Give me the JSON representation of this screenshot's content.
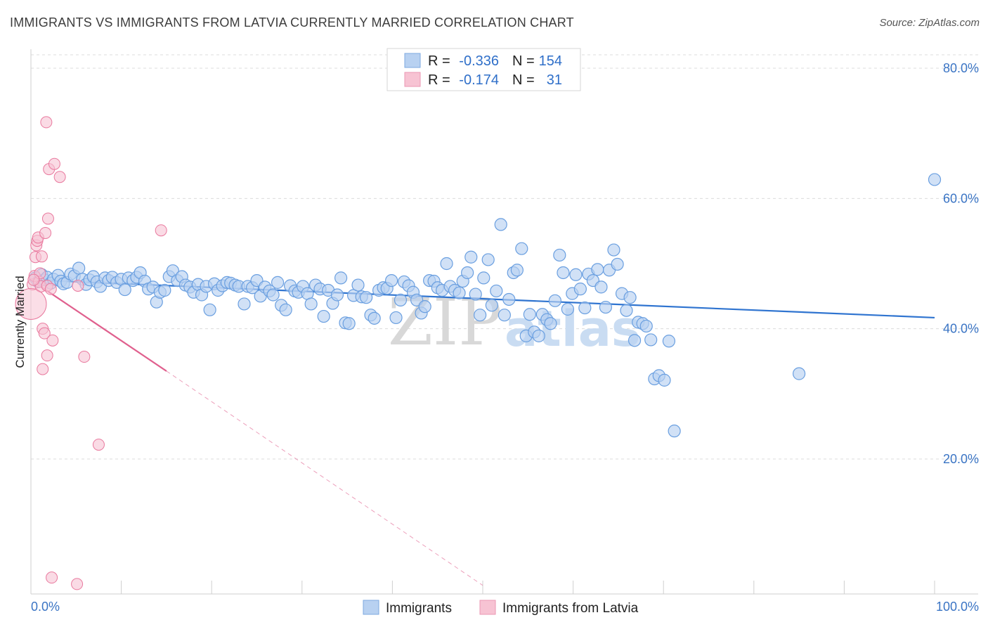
{
  "title": "IMMIGRANTS VS IMMIGRANTS FROM LATVIA CURRENTLY MARRIED CORRELATION CHART",
  "source": "Source: ZipAtlas.com",
  "watermark": {
    "zip": "ZIP",
    "atlas": "atlas"
  },
  "legend": {
    "rows": [
      {
        "r_label": "R =",
        "r_value": "-0.336",
        "n_label": "N =",
        "n_value": "154",
        "color": "#aac8ee"
      },
      {
        "r_label": "R =",
        "r_value": "-0.174",
        "n_label": "N =",
        "n_value": "31",
        "color": "#f6b8cc"
      }
    ]
  },
  "bottom_legend": [
    {
      "label": "Immigrants",
      "color": "#aac8ee"
    },
    {
      "label": "Immigrants from Latvia",
      "color": "#f6b8cc"
    }
  ],
  "colors": {
    "blue": "#6a9fe0",
    "blue_fill": "#b8d1f1",
    "blue_line": "#2f74d0",
    "pink": "#e9799e",
    "pink_fill": "#f7c3d3",
    "pink_line": "#e0608e",
    "axis_text": "#3a74c4"
  },
  "chart_data": {
    "type": "scatter",
    "xlabel": "",
    "ylabel": "Currently Married",
    "xlim": [
      0,
      100
    ],
    "ylim": [
      0,
      80
    ],
    "x_tick_labels": [
      {
        "value": 0,
        "label": "0.0%"
      },
      {
        "value": 100,
        "label": "100.0%"
      }
    ],
    "y_tick_labels": [
      {
        "value": 20,
        "label": "20.0%"
      },
      {
        "value": 40,
        "label": "40.0%"
      },
      {
        "value": 60,
        "label": "60.0%"
      },
      {
        "value": 80,
        "label": "80.0%"
      }
    ],
    "x_minor_ticks": [
      0,
      10,
      20,
      30,
      40,
      50,
      60,
      70,
      80,
      90,
      100
    ],
    "grid": true,
    "series": [
      {
        "name": "Immigrants",
        "trend": {
          "x0": 0,
          "y0": 47.5,
          "x1": 100,
          "y1": 41.7
        },
        "points": [
          [
            0.5,
            47.8
          ],
          [
            0.8,
            47.2
          ],
          [
            1.2,
            48.3
          ],
          [
            1.5,
            47.5
          ],
          [
            1.8,
            47.9
          ],
          [
            2.2,
            47.0
          ],
          [
            2.5,
            47.6
          ],
          [
            3.0,
            48.2
          ],
          [
            3.3,
            47.3
          ],
          [
            3.6,
            46.9
          ],
          [
            4.0,
            47.1
          ],
          [
            4.4,
            48.4
          ],
          [
            4.8,
            48.1
          ],
          [
            5.3,
            49.3
          ],
          [
            5.7,
            47.6
          ],
          [
            6.1,
            46.8
          ],
          [
            6.5,
            47.5
          ],
          [
            6.9,
            48.0
          ],
          [
            7.3,
            47.2
          ],
          [
            7.7,
            46.5
          ],
          [
            8.2,
            47.8
          ],
          [
            8.6,
            47.4
          ],
          [
            9.0,
            47.9
          ],
          [
            9.5,
            47.1
          ],
          [
            10.0,
            47.6
          ],
          [
            10.4,
            46.0
          ],
          [
            10.8,
            47.8
          ],
          [
            11.3,
            47.4
          ],
          [
            11.7,
            47.9
          ],
          [
            12.1,
            48.6
          ],
          [
            12.6,
            47.3
          ],
          [
            13.0,
            46.1
          ],
          [
            13.5,
            46.4
          ],
          [
            13.9,
            44.1
          ],
          [
            14.3,
            45.6
          ],
          [
            14.8,
            45.9
          ],
          [
            15.3,
            48.0
          ],
          [
            15.7,
            48.9
          ],
          [
            16.2,
            47.4
          ],
          [
            16.7,
            48.0
          ],
          [
            17.1,
            46.7
          ],
          [
            17.6,
            46.4
          ],
          [
            18.0,
            45.6
          ],
          [
            18.5,
            46.8
          ],
          [
            18.9,
            45.2
          ],
          [
            19.4,
            46.5
          ],
          [
            19.8,
            42.9
          ],
          [
            20.3,
            46.9
          ],
          [
            20.7,
            45.9
          ],
          [
            21.2,
            46.6
          ],
          [
            21.7,
            47.1
          ],
          [
            22.1,
            47.0
          ],
          [
            22.6,
            46.7
          ],
          [
            23.0,
            46.5
          ],
          [
            23.6,
            43.8
          ],
          [
            24.0,
            46.5
          ],
          [
            24.5,
            46.3
          ],
          [
            25.0,
            47.4
          ],
          [
            25.4,
            45.0
          ],
          [
            25.9,
            46.4
          ],
          [
            26.4,
            45.8
          ],
          [
            26.8,
            45.2
          ],
          [
            27.3,
            47.1
          ],
          [
            27.7,
            43.6
          ],
          [
            28.2,
            42.9
          ],
          [
            28.7,
            46.6
          ],
          [
            29.2,
            45.8
          ],
          [
            29.6,
            45.6
          ],
          [
            30.1,
            46.5
          ],
          [
            30.6,
            45.4
          ],
          [
            31.0,
            43.8
          ],
          [
            31.5,
            46.7
          ],
          [
            32.0,
            46.1
          ],
          [
            32.4,
            41.9
          ],
          [
            32.9,
            45.9
          ],
          [
            33.4,
            43.9
          ],
          [
            33.9,
            45.2
          ],
          [
            34.3,
            47.8
          ],
          [
            34.8,
            40.9
          ],
          [
            35.2,
            40.8
          ],
          [
            35.7,
            45.1
          ],
          [
            36.2,
            46.7
          ],
          [
            36.6,
            44.9
          ],
          [
            37.1,
            44.8
          ],
          [
            37.6,
            42.1
          ],
          [
            38.0,
            41.6
          ],
          [
            38.5,
            45.9
          ],
          [
            39.0,
            46.3
          ],
          [
            39.4,
            46.2
          ],
          [
            39.9,
            47.4
          ],
          [
            40.4,
            41.7
          ],
          [
            40.9,
            44.4
          ],
          [
            41.3,
            47.2
          ],
          [
            41.8,
            46.6
          ],
          [
            42.3,
            45.6
          ],
          [
            42.7,
            44.4
          ],
          [
            43.2,
            42.4
          ],
          [
            43.6,
            43.4
          ],
          [
            44.1,
            47.4
          ],
          [
            44.6,
            47.3
          ],
          [
            45.0,
            46.3
          ],
          [
            45.5,
            45.9
          ],
          [
            46.0,
            50.0
          ],
          [
            46.4,
            46.5
          ],
          [
            46.9,
            45.9
          ],
          [
            47.4,
            45.5
          ],
          [
            47.8,
            47.3
          ],
          [
            48.3,
            48.6
          ],
          [
            48.7,
            51.0
          ],
          [
            49.2,
            45.3
          ],
          [
            49.7,
            42.1
          ],
          [
            50.1,
            47.8
          ],
          [
            50.6,
            50.6
          ],
          [
            51.0,
            43.6
          ],
          [
            51.5,
            45.8
          ],
          [
            52.0,
            56.0
          ],
          [
            52.4,
            42.1
          ],
          [
            52.9,
            44.5
          ],
          [
            53.4,
            48.6
          ],
          [
            53.8,
            49.0
          ],
          [
            54.3,
            52.3
          ],
          [
            54.8,
            38.9
          ],
          [
            55.2,
            42.2
          ],
          [
            55.7,
            39.5
          ],
          [
            56.2,
            38.9
          ],
          [
            56.6,
            42.2
          ],
          [
            57.1,
            41.4
          ],
          [
            57.5,
            40.8
          ],
          [
            58.0,
            44.3
          ],
          [
            58.5,
            51.3
          ],
          [
            58.9,
            48.6
          ],
          [
            59.4,
            43.0
          ],
          [
            59.9,
            45.4
          ],
          [
            60.3,
            48.3
          ],
          [
            60.8,
            46.1
          ],
          [
            61.3,
            43.2
          ],
          [
            61.7,
            48.4
          ],
          [
            62.2,
            47.4
          ],
          [
            62.7,
            49.1
          ],
          [
            63.1,
            46.4
          ],
          [
            63.6,
            43.3
          ],
          [
            64.0,
            49.0
          ],
          [
            64.5,
            52.1
          ],
          [
            64.9,
            49.9
          ],
          [
            65.4,
            45.4
          ],
          [
            65.9,
            42.8
          ],
          [
            66.3,
            44.8
          ],
          [
            66.8,
            38.2
          ],
          [
            67.2,
            41.0
          ],
          [
            67.7,
            40.8
          ],
          [
            68.1,
            40.4
          ],
          [
            68.6,
            38.3
          ],
          [
            69.0,
            32.3
          ],
          [
            69.5,
            32.8
          ],
          [
            70.1,
            32.1
          ],
          [
            70.6,
            38.1
          ],
          [
            71.2,
            24.3
          ],
          [
            85.0,
            33.1
          ],
          [
            100.0,
            62.9
          ]
        ]
      },
      {
        "name": "Immigrants from Latvia",
        "trend": {
          "x0": 0,
          "y0": 47.5,
          "x1": 15,
          "y1": 33.5,
          "dash_to_x": 50,
          "dash_to_y": 0.6
        },
        "points": [
          [
            0.2,
            46.8
          ],
          [
            0.4,
            48.1
          ],
          [
            0.5,
            51.0
          ],
          [
            0.6,
            52.8
          ],
          [
            0.7,
            53.5
          ],
          [
            0.8,
            54.0
          ],
          [
            0.9,
            47.2
          ],
          [
            1.0,
            48.5
          ],
          [
            1.1,
            46.5
          ],
          [
            1.2,
            51.1
          ],
          [
            1.3,
            33.8
          ],
          [
            1.3,
            40.0
          ],
          [
            1.5,
            39.3
          ],
          [
            1.6,
            54.7
          ],
          [
            1.7,
            71.7
          ],
          [
            1.8,
            35.9
          ],
          [
            1.8,
            46.6
          ],
          [
            1.9,
            56.9
          ],
          [
            2.0,
            64.5
          ],
          [
            2.2,
            46.1
          ],
          [
            2.3,
            1.8
          ],
          [
            2.4,
            38.2
          ],
          [
            2.6,
            65.3
          ],
          [
            3.2,
            63.3
          ],
          [
            5.1,
            0.8
          ],
          [
            5.2,
            46.6
          ],
          [
            5.9,
            35.7
          ],
          [
            7.5,
            22.2
          ],
          [
            14.4,
            55.1
          ],
          [
            0.0,
            43.8
          ],
          [
            0.3,
            47.5
          ]
        ]
      }
    ]
  }
}
